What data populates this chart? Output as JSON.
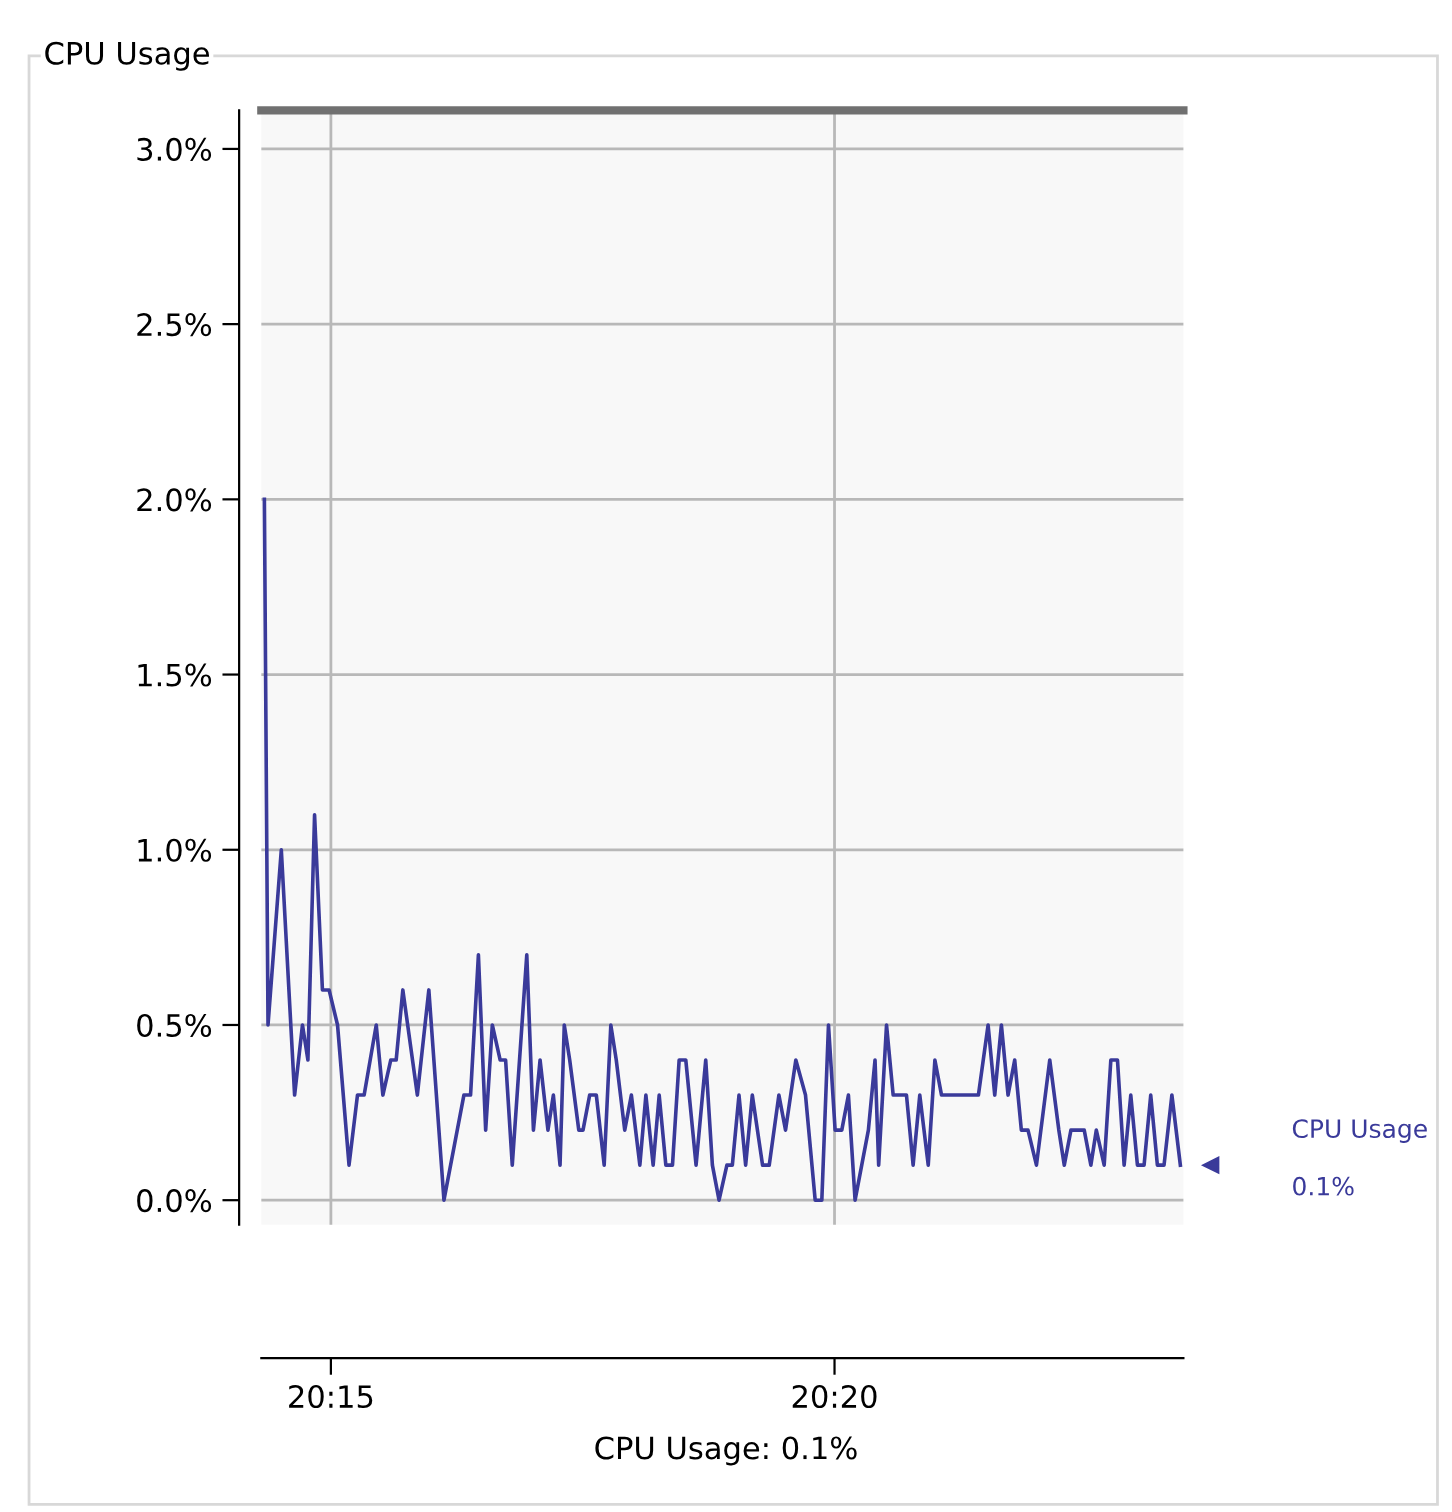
{
  "chart_data": {
    "type": "line",
    "title": "CPU Usage",
    "xlim": [
      20.2385,
      20.391
    ],
    "ylim": [
      -0.07,
      3.11
    ],
    "xticks": [
      {
        "value": 20.25,
        "label": "20:15"
      },
      {
        "value": 20.3333,
        "label": "20:20"
      }
    ],
    "yticks": [
      {
        "value": 0,
        "label": "0.0%"
      },
      {
        "value": 0.5,
        "label": "0.5%"
      },
      {
        "value": 1.0,
        "label": "1.0%"
      },
      {
        "value": 1.5,
        "label": "1.5%"
      },
      {
        "value": 2.0,
        "label": "2.0%"
      },
      {
        "value": 2.5,
        "label": "2.5%"
      },
      {
        "value": 3.0,
        "label": "3.0%"
      }
    ],
    "grid": true,
    "legend": "right",
    "marker": "none",
    "line_style": "solid",
    "series": [
      {
        "name": "CPU Usage",
        "color": "#3a3a9a",
        "x": [
          20.239,
          20.2396,
          20.2418,
          20.244,
          20.2453,
          20.2462,
          20.2473,
          20.2486,
          20.2497,
          20.2511,
          20.253,
          20.2544,
          20.2555,
          20.2575,
          20.2586,
          20.2599,
          20.2608,
          20.2619,
          20.2643,
          20.2662,
          20.2687,
          20.272,
          20.2731,
          20.2744,
          20.2756,
          20.2767,
          20.278,
          20.2789,
          20.28,
          20.2824,
          20.2835,
          20.2846,
          20.2859,
          20.2868,
          20.2879,
          20.2886,
          20.2895,
          20.291,
          20.2917,
          20.2928,
          20.2939,
          20.2952,
          20.2963,
          20.2972,
          20.2986,
          20.2997,
          20.3011,
          20.3021,
          20.3033,
          20.3043,
          20.3054,
          20.3065,
          20.3076,
          20.3087,
          20.3104,
          20.312,
          20.3131,
          20.3142,
          20.3155,
          20.3164,
          20.3175,
          20.3186,
          20.3197,
          20.3214,
          20.3225,
          20.3241,
          20.3252,
          20.3269,
          20.3285,
          20.3301,
          20.3312,
          20.3323,
          20.3334,
          20.3345,
          20.3356,
          20.3367,
          20.3378,
          20.3389,
          20.34,
          20.3406,
          20.3419,
          20.343,
          20.3444,
          20.3452,
          20.3463,
          20.3474,
          20.3488,
          20.3499,
          20.351,
          20.3571,
          20.3587,
          20.3598,
          20.3609,
          20.362,
          20.3631,
          20.3642,
          20.3653,
          20.3667,
          20.3689,
          20.3704,
          20.3713,
          20.3724,
          20.3735,
          20.3746,
          20.3757,
          20.3766,
          20.3779,
          20.379,
          20.3801,
          20.3812,
          20.3823,
          20.3834,
          20.3845,
          20.3856,
          20.3867,
          20.3878,
          20.3891,
          20.3905
        ],
        "values": [
          2.0,
          0.5,
          1.0,
          0.3,
          0.5,
          0.4,
          1.1,
          0.6,
          0.6,
          0.5,
          0.1,
          0.3,
          0.3,
          0.5,
          0.3,
          0.4,
          0.4,
          0.6,
          0.3,
          0.6,
          0.0,
          0.3,
          0.3,
          0.7,
          0.2,
          0.5,
          0.4,
          0.4,
          0.1,
          0.7,
          0.2,
          0.4,
          0.2,
          0.3,
          0.1,
          0.5,
          0.4,
          0.2,
          0.2,
          0.3,
          0.3,
          0.1,
          0.5,
          0.4,
          0.2,
          0.3,
          0.1,
          0.3,
          0.1,
          0.3,
          0.1,
          0.1,
          0.4,
          0.4,
          0.1,
          0.4,
          0.1,
          0.0,
          0.1,
          0.1,
          0.3,
          0.1,
          0.3,
          0.1,
          0.1,
          0.3,
          0.2,
          0.4,
          0.3,
          0.0,
          0.0,
          0.5,
          0.2,
          0.2,
          0.3,
          0.0,
          0.1,
          0.2,
          0.4,
          0.1,
          0.5,
          0.3,
          0.3,
          0.3,
          0.1,
          0.3,
          0.1,
          0.4,
          0.3,
          0.3,
          0.5,
          0.3,
          0.5,
          0.3,
          0.4,
          0.2,
          0.2,
          0.1,
          0.4,
          0.2,
          0.1,
          0.2,
          0.2,
          0.2,
          0.1,
          0.2,
          0.1,
          0.4,
          0.4,
          0.1,
          0.3,
          0.1,
          0.1,
          0.3,
          0.1,
          0.1,
          0.3,
          0.1
        ]
      }
    ],
    "annotations": [
      "0.1%",
      "CPU Usage: 0.1%"
    ]
  }
}
